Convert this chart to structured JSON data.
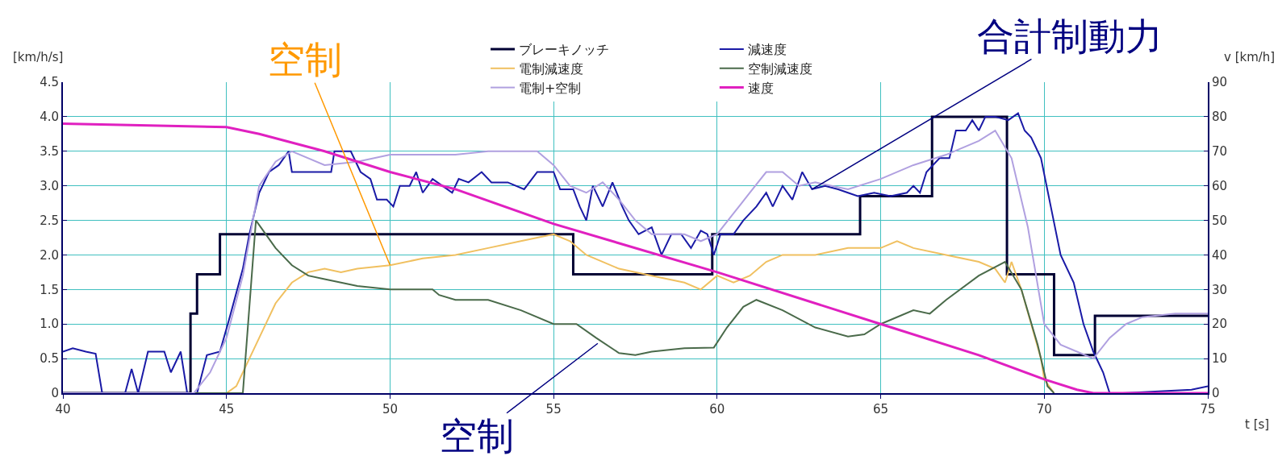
{
  "chart_data": {
    "type": "line",
    "xlabel": "t [s]",
    "ylabel": "[km/h/s]",
    "y2label": "v [km/h]",
    "xlim": [
      40,
      75
    ],
    "xticks": [
      40,
      45,
      50,
      55,
      60,
      65,
      70,
      75
    ],
    "ylim": [
      0,
      4.5
    ],
    "yticks": [
      0,
      {
        "value": 0.5,
        "label": "0.5"
      },
      {
        "value": 1,
        "label": "1.0"
      },
      {
        "value": 1.5,
        "label": "1.5"
      },
      {
        "value": 2,
        "label": "2.0"
      },
      {
        "value": 2.5,
        "label": "2.5"
      },
      {
        "value": 3,
        "label": "3.0"
      },
      {
        "value": 3.5,
        "label": "3.5"
      },
      {
        "value": 4,
        "label": "4.0"
      },
      {
        "value": 4.5,
        "label": "4.5"
      }
    ],
    "y2lim": [
      0,
      90
    ],
    "y2ticks": [
      0,
      10,
      20,
      30,
      40,
      50,
      60,
      70,
      80,
      90
    ],
    "grid": true,
    "legend": "top",
    "marker": "none",
    "line_style": "solid",
    "series": [
      {
        "name": "ブレーキノッチ",
        "type": "step",
        "color": "#000033",
        "x": [
          40,
          43.9,
          44.1,
          44.8,
          55.6,
          59.85,
          64.37,
          66.57,
          68.86,
          70.3,
          71.55,
          75
        ],
        "values": [
          0,
          1.15,
          1.72,
          2.3,
          1.72,
          2.3,
          2.85,
          4.0,
          1.72,
          0.55,
          1.12,
          1.12
        ]
      },
      {
        "name": "減速度",
        "color": "#1a1aa6",
        "x": [
          40,
          40.3,
          40.7,
          41.0,
          41.2,
          41.9,
          42.1,
          42.3,
          42.6,
          43.1,
          43.3,
          43.6,
          43.8,
          44.1,
          44.4,
          44.8,
          45.1,
          45.5,
          45.7,
          46.0,
          46.3,
          46.6,
          46.9,
          47.0,
          48.2,
          48.3,
          48.8,
          49.1,
          49.4,
          49.6,
          49.9,
          50.1,
          50.3,
          50.6,
          50.8,
          51.0,
          51.3,
          51.6,
          51.9,
          52.1,
          52.4,
          52.8,
          53.1,
          53.6,
          54.1,
          54.5,
          55.0,
          55.2,
          55.6,
          55.8,
          56.0,
          56.2,
          56.5,
          56.8,
          57.1,
          57.3,
          57.6,
          58.0,
          58.3,
          58.6,
          58.9,
          59.2,
          59.5,
          59.7,
          59.9,
          60.1,
          60.5,
          60.8,
          61.2,
          61.5,
          61.7,
          62.0,
          62.3,
          62.6,
          62.9,
          63.3,
          63.7,
          64.0,
          64.3,
          64.8,
          65.3,
          65.8,
          66.0,
          66.2,
          66.4,
          66.8,
          67.1,
          67.3,
          67.6,
          67.8,
          68.0,
          68.2,
          68.5,
          68.9,
          69.2,
          69.4,
          69.6,
          69.9,
          70.2,
          70.5,
          70.9,
          71.2,
          71.5,
          71.8,
          72.0,
          72.4,
          74.5,
          75
        ],
        "values": [
          0.6,
          0.65,
          0.6,
          0.57,
          0,
          0,
          0.35,
          0,
          0.6,
          0.6,
          0.3,
          0.6,
          0,
          0,
          0.55,
          0.6,
          1.1,
          1.8,
          2.3,
          2.9,
          3.2,
          3.3,
          3.5,
          3.2,
          3.2,
          3.5,
          3.5,
          3.2,
          3.1,
          2.8,
          2.8,
          2.7,
          3.0,
          3.0,
          3.2,
          2.9,
          3.1,
          3.0,
          2.9,
          3.1,
          3.05,
          3.2,
          3.05,
          3.05,
          2.95,
          3.2,
          3.2,
          2.95,
          2.95,
          2.7,
          2.5,
          3.0,
          2.7,
          3.05,
          2.7,
          2.5,
          2.3,
          2.4,
          2.0,
          2.3,
          2.3,
          2.1,
          2.35,
          2.3,
          2.0,
          2.3,
          2.3,
          2.5,
          2.7,
          2.9,
          2.7,
          3.0,
          2.8,
          3.2,
          2.95,
          3.0,
          2.95,
          2.9,
          2.85,
          2.9,
          2.85,
          2.9,
          3.0,
          2.9,
          3.2,
          3.4,
          3.4,
          3.8,
          3.8,
          3.95,
          3.8,
          4.0,
          4.0,
          3.95,
          4.05,
          3.8,
          3.7,
          3.4,
          2.7,
          2.0,
          1.6,
          1.0,
          0.6,
          0.3,
          0,
          0,
          0.05,
          0.1
        ]
      },
      {
        "name": "電制減速度",
        "color": "#f0c060",
        "x": [
          40,
          45,
          45.3,
          45.7,
          46.0,
          46.5,
          47.0,
          47.5,
          48,
          48.5,
          49,
          50,
          51,
          52,
          53,
          54,
          55,
          55.5,
          56,
          57,
          58,
          59,
          59.5,
          60,
          60.5,
          61,
          61.5,
          62,
          63,
          64,
          65,
          65.5,
          66,
          67,
          68,
          68.5,
          68.8,
          69,
          69.3,
          69.6,
          69.9,
          70.0,
          70.3
        ],
        "values": [
          0,
          0,
          0.1,
          0.5,
          0.8,
          1.3,
          1.6,
          1.75,
          1.8,
          1.75,
          1.8,
          1.85,
          1.95,
          2.0,
          2.1,
          2.2,
          2.3,
          2.2,
          2.0,
          1.8,
          1.7,
          1.6,
          1.5,
          1.7,
          1.6,
          1.7,
          1.9,
          2.0,
          2.0,
          2.1,
          2.1,
          2.2,
          2.1,
          2.0,
          1.9,
          1.8,
          1.6,
          1.9,
          1.5,
          1.0,
          0.5,
          0.2,
          0
        ]
      },
      {
        "name": "空制減速度",
        "color": "#4a6a4a",
        "x": [
          40,
          45.5,
          45.9,
          46.5,
          47,
          47.5,
          48,
          49,
          50,
          51.3,
          51.5,
          52,
          53,
          54,
          55,
          55.7,
          56.3,
          57,
          57.5,
          58,
          59,
          59.9,
          60.3,
          60.8,
          61.2,
          62,
          63,
          64,
          64.5,
          65,
          66,
          66.5,
          67,
          68,
          68.8,
          69.3,
          69.8,
          70.1,
          70.3
        ],
        "values": [
          0,
          0,
          2.5,
          2.1,
          1.85,
          1.7,
          1.65,
          1.55,
          1.5,
          1.5,
          1.42,
          1.35,
          1.35,
          1.2,
          1.0,
          1.0,
          0.8,
          0.58,
          0.55,
          0.6,
          0.65,
          0.66,
          0.95,
          1.25,
          1.35,
          1.2,
          0.95,
          0.82,
          0.85,
          1.0,
          1.2,
          1.15,
          1.35,
          1.7,
          1.9,
          1.5,
          0.7,
          0.1,
          0
        ]
      },
      {
        "name": "電制+空制",
        "color": "#b0a0e0",
        "x": [
          40,
          44,
          44.5,
          45,
          45.5,
          46,
          46.5,
          47,
          48,
          49,
          50,
          51,
          52,
          53,
          54,
          54.5,
          55,
          55.5,
          56,
          56.5,
          57,
          57.5,
          58,
          58.5,
          59,
          59.5,
          60,
          60.5,
          61,
          61.5,
          62,
          62.5,
          63,
          64,
          65,
          66,
          67,
          68,
          68.5,
          69,
          69.5,
          70,
          70.5,
          71,
          71.5,
          72,
          72.5,
          73,
          74,
          75
        ],
        "values": [
          0,
          0,
          0.3,
          0.8,
          1.7,
          3.0,
          3.35,
          3.5,
          3.3,
          3.35,
          3.45,
          3.45,
          3.45,
          3.5,
          3.5,
          3.5,
          3.3,
          3.0,
          2.9,
          3.05,
          2.8,
          2.5,
          2.3,
          2.3,
          2.3,
          2.2,
          2.3,
          2.6,
          2.9,
          3.2,
          3.2,
          3.0,
          3.05,
          2.95,
          3.1,
          3.3,
          3.45,
          3.65,
          3.8,
          3.4,
          2.4,
          1.0,
          0.7,
          0.6,
          0.5,
          0.8,
          1.0,
          1.1,
          1.15,
          1.15
        ]
      },
      {
        "name": "速度",
        "axis": "y2",
        "color": "#e020c0",
        "x": [
          40,
          45,
          46,
          48,
          50,
          52,
          55,
          60,
          65,
          68,
          70,
          71,
          71.5,
          75
        ],
        "values": [
          78,
          77,
          75,
          70,
          64,
          59,
          49,
          35,
          20,
          11,
          4,
          1,
          0,
          0
        ]
      }
    ],
    "annotations": [
      {
        "text": "空制",
        "x": 50,
        "y": 1.85
      },
      {
        "text": "合計制動力",
        "x": 62.9,
        "y": 2.95
      },
      {
        "text": "空制",
        "x": 56.35,
        "y": 0.72
      }
    ]
  }
}
